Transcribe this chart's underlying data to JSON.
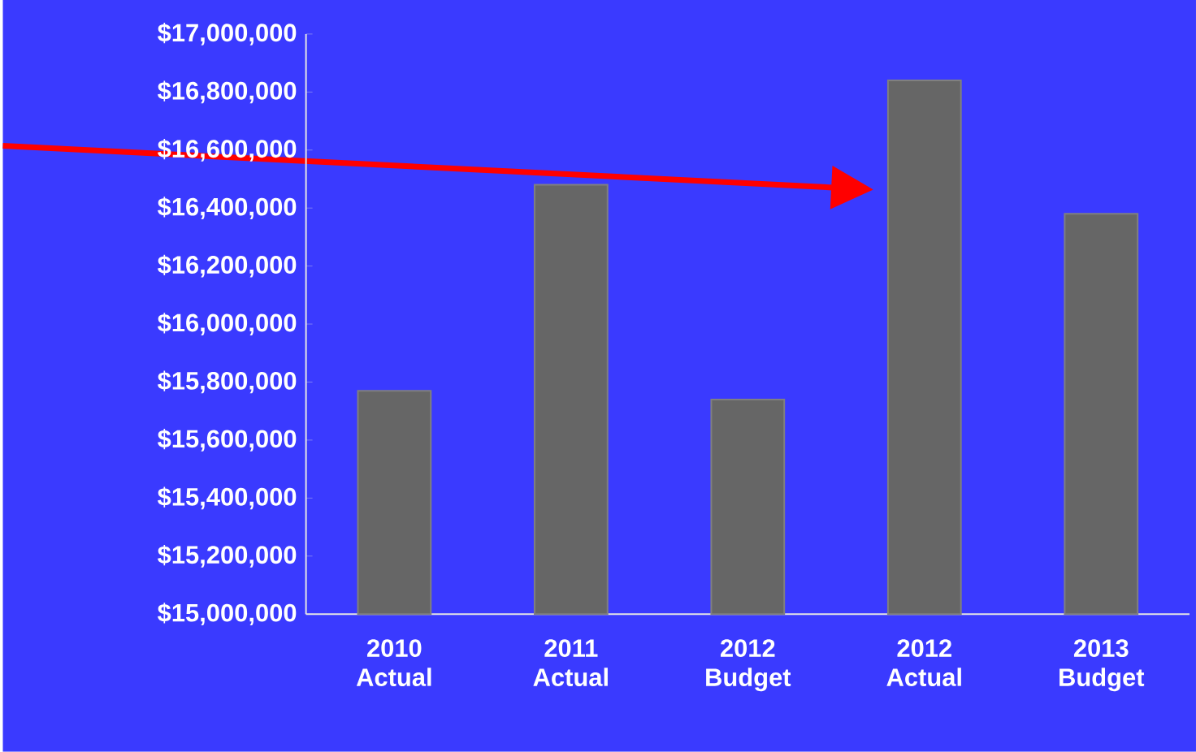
{
  "chart_data": {
    "type": "bar",
    "categories": [
      "2010 Actual",
      "2011 Actual",
      "2012 Budget",
      "2012 Actual",
      "2013 Budget"
    ],
    "values": [
      15770000,
      16480000,
      15740000,
      16840000,
      16380000
    ],
    "color": "#666666",
    "ylim": [
      15000000,
      17000000
    ],
    "yticks": [
      {
        "value": 15000000,
        "label": "$15,000,000"
      },
      {
        "value": 15200000,
        "label": "$15,200,000"
      },
      {
        "value": 15400000,
        "label": "$15,400,000"
      },
      {
        "value": 15600000,
        "label": "$15,600,000"
      },
      {
        "value": 15800000,
        "label": "$15,800,000"
      },
      {
        "value": 16000000,
        "label": "$16,000,000"
      },
      {
        "value": 16200000,
        "label": "$16,200,000"
      },
      {
        "value": 16400000,
        "label": "$16,400,000"
      },
      {
        "value": 16600000,
        "label": "$16,600,000"
      },
      {
        "value": 16800000,
        "label": "$16,800,000"
      },
      {
        "value": 17000000,
        "label": "$17,000,000"
      }
    ]
  }
}
